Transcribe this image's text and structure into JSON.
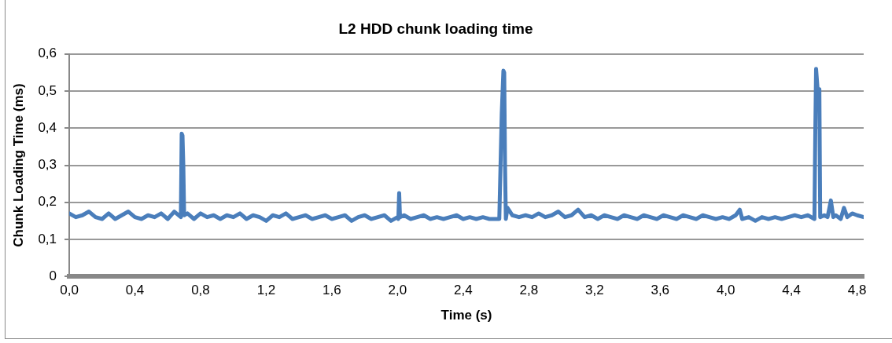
{
  "chart_data": {
    "type": "line",
    "title": "L2 HDD chunk loading time",
    "xlabel": "Time (s)",
    "ylabel": "Chunk Loading Time (ms)",
    "xlim": [
      0,
      4.84
    ],
    "xticks": [
      {
        "value": 0,
        "label": "0,0"
      },
      {
        "value": 0.4,
        "label": "0,4"
      },
      {
        "value": 0.8,
        "label": "0,8"
      },
      {
        "value": 1.2,
        "label": "1,2"
      },
      {
        "value": 1.6,
        "label": "1,6"
      },
      {
        "value": 2.0,
        "label": "2,0"
      },
      {
        "value": 2.4,
        "label": "2,4"
      },
      {
        "value": 2.8,
        "label": "2,8"
      },
      {
        "value": 3.2,
        "label": "3,2"
      },
      {
        "value": 3.6,
        "label": "3,6"
      },
      {
        "value": 4.0,
        "label": "4,0"
      },
      {
        "value": 4.4,
        "label": "4,4"
      },
      {
        "value": 4.8,
        "label": "4,8"
      }
    ],
    "ylim": [
      0,
      0.6
    ],
    "yticks": [
      0,
      {
        "value": 0.1,
        "label": "0,1"
      },
      {
        "value": 0.2,
        "label": "0,2"
      },
      {
        "value": 0.3,
        "label": "0,3"
      },
      {
        "value": 0.4,
        "label": "0,4"
      },
      {
        "value": 0.5,
        "label": "0,5"
      },
      {
        "value": 0.6,
        "label": "0,6"
      }
    ],
    "grid": "y",
    "legend": false,
    "marker": "none",
    "line_style": "solid",
    "series": [
      {
        "color": "#4a7ebb",
        "x": [
          0,
          0.04,
          0.08,
          0.12,
          0.16,
          0.2,
          0.24,
          0.28,
          0.32,
          0.36,
          0.4,
          0.44,
          0.48,
          0.52,
          0.56,
          0.6,
          0.64,
          0.68,
          0.685,
          0.69,
          0.695,
          0.7,
          0.72,
          0.76,
          0.8,
          0.84,
          0.88,
          0.92,
          0.96,
          1,
          1.04,
          1.08,
          1.12,
          1.16,
          1.2,
          1.24,
          1.28,
          1.32,
          1.36,
          1.4,
          1.44,
          1.48,
          1.52,
          1.56,
          1.6,
          1.64,
          1.68,
          1.72,
          1.76,
          1.8,
          1.84,
          1.88,
          1.92,
          1.96,
          2,
          2.005,
          2.01,
          2.015,
          2.04,
          2.08,
          2.12,
          2.16,
          2.2,
          2.24,
          2.28,
          2.32,
          2.36,
          2.4,
          2.44,
          2.48,
          2.52,
          2.56,
          2.6,
          2.62,
          2.625,
          2.635,
          2.645,
          2.65,
          2.655,
          2.66,
          2.67,
          2.7,
          2.74,
          2.78,
          2.82,
          2.86,
          2.9,
          2.94,
          2.98,
          3.02,
          3.06,
          3.1,
          3.14,
          3.18,
          3.22,
          3.26,
          3.3,
          3.34,
          3.38,
          3.42,
          3.46,
          3.5,
          3.54,
          3.58,
          3.62,
          3.66,
          3.7,
          3.74,
          3.78,
          3.82,
          3.86,
          3.9,
          3.94,
          3.98,
          4.02,
          4.06,
          4.085,
          4.1,
          4.14,
          4.18,
          4.22,
          4.26,
          4.3,
          4.34,
          4.38,
          4.42,
          4.46,
          4.5,
          4.54,
          4.545,
          4.55,
          4.56,
          4.57,
          4.575,
          4.6,
          4.62,
          4.64,
          4.655,
          4.67,
          4.7,
          4.72,
          4.74,
          4.77,
          4.8,
          4.84
        ],
        "values": [
          0.17,
          0.16,
          0.165,
          0.175,
          0.16,
          0.155,
          0.17,
          0.155,
          0.165,
          0.175,
          0.16,
          0.155,
          0.165,
          0.16,
          0.17,
          0.155,
          0.175,
          0.16,
          0.385,
          0.38,
          0.3,
          0.165,
          0.17,
          0.155,
          0.17,
          0.16,
          0.165,
          0.155,
          0.165,
          0.16,
          0.17,
          0.155,
          0.165,
          0.16,
          0.15,
          0.165,
          0.16,
          0.17,
          0.155,
          0.16,
          0.165,
          0.155,
          0.16,
          0.165,
          0.155,
          0.16,
          0.165,
          0.15,
          0.16,
          0.165,
          0.155,
          0.16,
          0.165,
          0.15,
          0.16,
          0.155,
          0.225,
          0.16,
          0.165,
          0.155,
          0.16,
          0.165,
          0.155,
          0.16,
          0.155,
          0.16,
          0.165,
          0.155,
          0.16,
          0.155,
          0.16,
          0.155,
          0.155,
          0.155,
          0.25,
          0.44,
          0.555,
          0.55,
          0.3,
          0.155,
          0.185,
          0.165,
          0.16,
          0.165,
          0.16,
          0.17,
          0.16,
          0.165,
          0.175,
          0.16,
          0.165,
          0.18,
          0.16,
          0.165,
          0.155,
          0.165,
          0.16,
          0.155,
          0.165,
          0.16,
          0.155,
          0.165,
          0.16,
          0.155,
          0.165,
          0.16,
          0.155,
          0.165,
          0.16,
          0.155,
          0.165,
          0.16,
          0.155,
          0.16,
          0.155,
          0.165,
          0.18,
          0.155,
          0.16,
          0.15,
          0.16,
          0.155,
          0.16,
          0.155,
          0.16,
          0.165,
          0.16,
          0.165,
          0.155,
          0.38,
          0.56,
          0.5,
          0.505,
          0.16,
          0.165,
          0.16,
          0.205,
          0.16,
          0.165,
          0.155,
          0.185,
          0.16,
          0.17,
          0.165,
          0.16
        ]
      }
    ]
  }
}
